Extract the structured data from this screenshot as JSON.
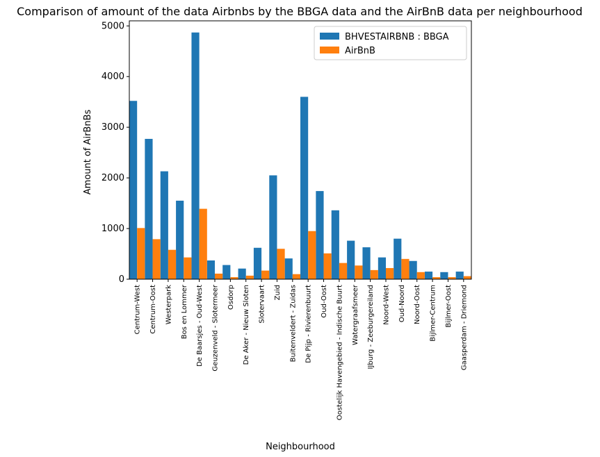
{
  "chart_data": {
    "type": "bar",
    "title": "Comparison of amount of the data Airbnbs by the BBGA data and the AirBnB data per neighbourhood",
    "xlabel": "Neighbourhood",
    "ylabel": "Amount of AirBnBs",
    "ylim": [
      0,
      5100
    ],
    "yticks": [
      0,
      1000,
      2000,
      3000,
      4000,
      5000
    ],
    "grid": false,
    "legend_position": "top-right",
    "categories": [
      "Centrum-West",
      "Centrum-Oost",
      "Westerpark",
      "Bos en Lommer",
      "De Baarsjes - Oud-West",
      "Geuzenveld - Slotermeer",
      "Osdorp",
      "De Aker - Nieuw Sloten",
      "Slotervaart",
      "Zuid",
      "Buitenveldert - Zuidas",
      "De Pijp - Rivierenbuurt",
      "Oud-Oost",
      "Oostelijk Havengebied - Indische Buurt",
      "Watergraafsmeer",
      "IJburg - Zeeburgereiland",
      "Noord-West",
      "Oud-Noord",
      "Noord-Oost",
      "Bijlmer-Centrum",
      "Bijlmer-Oost",
      "Gaasperdam - Driemond"
    ],
    "series": [
      {
        "name": "BHVESTAIRBNB : BBGA",
        "color": "#1f77b4",
        "values": [
          3520,
          2770,
          2130,
          1550,
          4870,
          370,
          280,
          210,
          620,
          2050,
          410,
          3600,
          1740,
          1360,
          760,
          630,
          430,
          800,
          360,
          150,
          140,
          150
        ]
      },
      {
        "name": "AirBnB",
        "color": "#ff7f0e",
        "values": [
          1010,
          790,
          580,
          430,
          1390,
          110,
          40,
          70,
          170,
          600,
          100,
          950,
          510,
          320,
          270,
          180,
          220,
          400,
          140,
          40,
          40,
          60
        ]
      }
    ]
  }
}
